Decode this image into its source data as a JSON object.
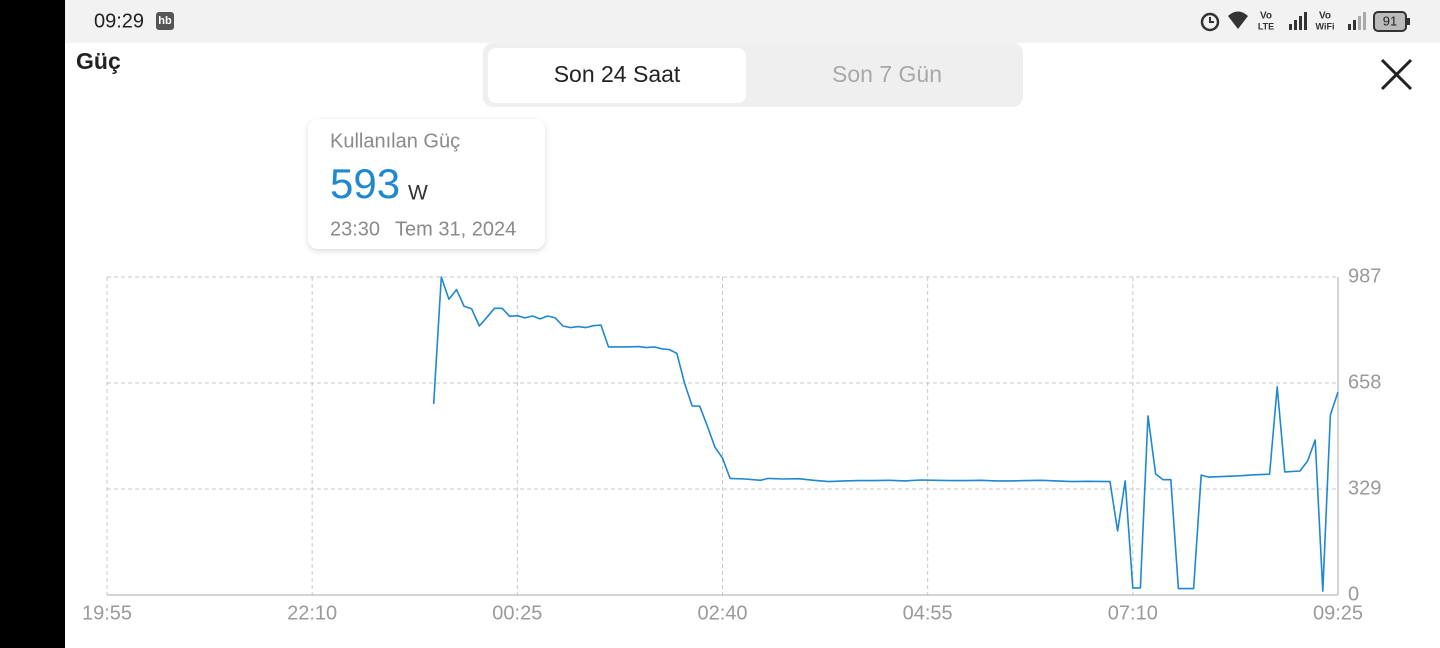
{
  "status_bar": {
    "time": "09:29",
    "app_badge": "hb",
    "lte_top": "Vo",
    "lte_bottom": "LTE",
    "wifi_top": "Vo",
    "wifi_bottom": "WiFi",
    "battery": "91"
  },
  "header": {
    "title": "Güç",
    "tabs": [
      "Son 24 Saat",
      "Son 7 Gün"
    ]
  },
  "tooltip": {
    "label": "Kullanılan Güç",
    "value": 593,
    "unit": "W",
    "time": "23:30",
    "date": "Tem 31, 2024"
  },
  "chart_data": {
    "type": "line",
    "x": [
      "23:30",
      "23:35",
      "23:40",
      "23:45",
      "23:50",
      "23:55",
      "00:00",
      "00:05",
      "00:10",
      "00:15",
      "00:20",
      "00:25",
      "00:30",
      "00:35",
      "00:40",
      "00:45",
      "00:50",
      "00:55",
      "01:00",
      "01:05",
      "01:10",
      "01:15",
      "01:20",
      "01:25",
      "01:35",
      "01:45",
      "01:50",
      "01:55",
      "02:00",
      "02:05",
      "02:10",
      "02:15",
      "02:20",
      "02:25",
      "02:30",
      "02:35",
      "02:40",
      "02:45",
      "02:55",
      "03:05",
      "03:10",
      "03:20",
      "03:30",
      "03:40",
      "03:50",
      "04:00",
      "04:10",
      "04:20",
      "04:30",
      "04:40",
      "04:50",
      "05:00",
      "05:10",
      "05:20",
      "05:30",
      "05:40",
      "05:50",
      "06:00",
      "06:10",
      "06:20",
      "06:30",
      "06:40",
      "06:55",
      "07:00",
      "07:05",
      "07:10",
      "07:15",
      "07:20",
      "07:25",
      "07:30",
      "07:35",
      "07:40",
      "07:50",
      "07:55",
      "08:00",
      "08:10",
      "08:20",
      "08:30",
      "08:40",
      "08:45",
      "08:50",
      "09:00",
      "09:05",
      "09:10",
      "09:15",
      "09:20",
      "09:25"
    ],
    "series": [
      {
        "name": "Kullanılan Güç",
        "color": "#1e88d0",
        "values": [
          593,
          987,
          918,
          948,
          896,
          888,
          835,
          862,
          890,
          890,
          865,
          867,
          860,
          866,
          857,
          866,
          860,
          835,
          830,
          833,
          830,
          836,
          838,
          770,
          770,
          771,
          768,
          770,
          764,
          762,
          750,
          658,
          587,
          586,
          525,
          459,
          425,
          362,
          360,
          356,
          362,
          360,
          361,
          356,
          352,
          354,
          355,
          355,
          356,
          354,
          357,
          356,
          355,
          355,
          356,
          354,
          354,
          355,
          356,
          354,
          352,
          353,
          352,
          199,
          354,
          22,
          22,
          556,
          376,
          358,
          358,
          20,
          20,
          372,
          366,
          368,
          370,
          373,
          375,
          646,
          382,
          385,
          416,
          481,
          12,
          559,
          630
        ]
      }
    ],
    "xlim": [
      "19:55",
      "09:25"
    ],
    "xticks": [
      "19:55",
      "22:10",
      "00:25",
      "02:40",
      "04:55",
      "07:10",
      "09:25"
    ],
    "ylim": [
      0,
      987
    ],
    "yticks": [
      0,
      329,
      658,
      987
    ],
    "grid": true
  }
}
